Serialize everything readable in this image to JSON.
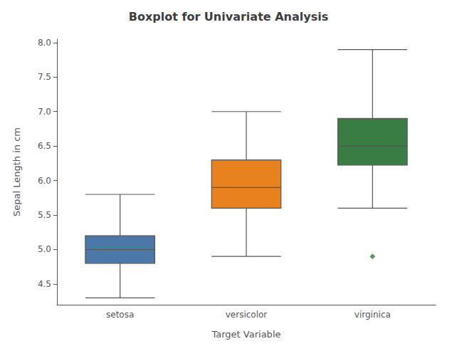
{
  "chart_data": {
    "type": "box",
    "title": "Boxplot for Univariate Analysis",
    "xlabel": "Target Variable",
    "ylabel": "Sepal Length in cm",
    "categories": [
      "setosa",
      "versicolor",
      "virginica"
    ],
    "colors": [
      "#4C78A8",
      "#E8821E",
      "#3A7D44"
    ],
    "boxes": [
      {
        "whislo": 4.3,
        "q1": 4.8,
        "med": 5.0,
        "q3": 5.2,
        "whishi": 5.8,
        "fliers": []
      },
      {
        "whislo": 4.9,
        "q1": 5.6,
        "med": 5.9,
        "q3": 6.3,
        "whishi": 7.0,
        "fliers": []
      },
      {
        "whislo": 5.6,
        "q1": 6.225,
        "med": 6.5,
        "q3": 6.9,
        "whishi": 7.9,
        "fliers": [
          4.9
        ]
      }
    ],
    "marker": "diamond",
    "ylim": [
      4.2,
      8.05
    ],
    "yticks": [
      4.5,
      {
        "value": 5.0,
        "label": "5.0"
      },
      5.5,
      {
        "value": 6.0,
        "label": "6.0"
      },
      6.5,
      {
        "value": 7.0,
        "label": "7.0"
      },
      7.5,
      {
        "value": 8.0,
        "label": "8.0"
      }
    ],
    "grid": false
  }
}
